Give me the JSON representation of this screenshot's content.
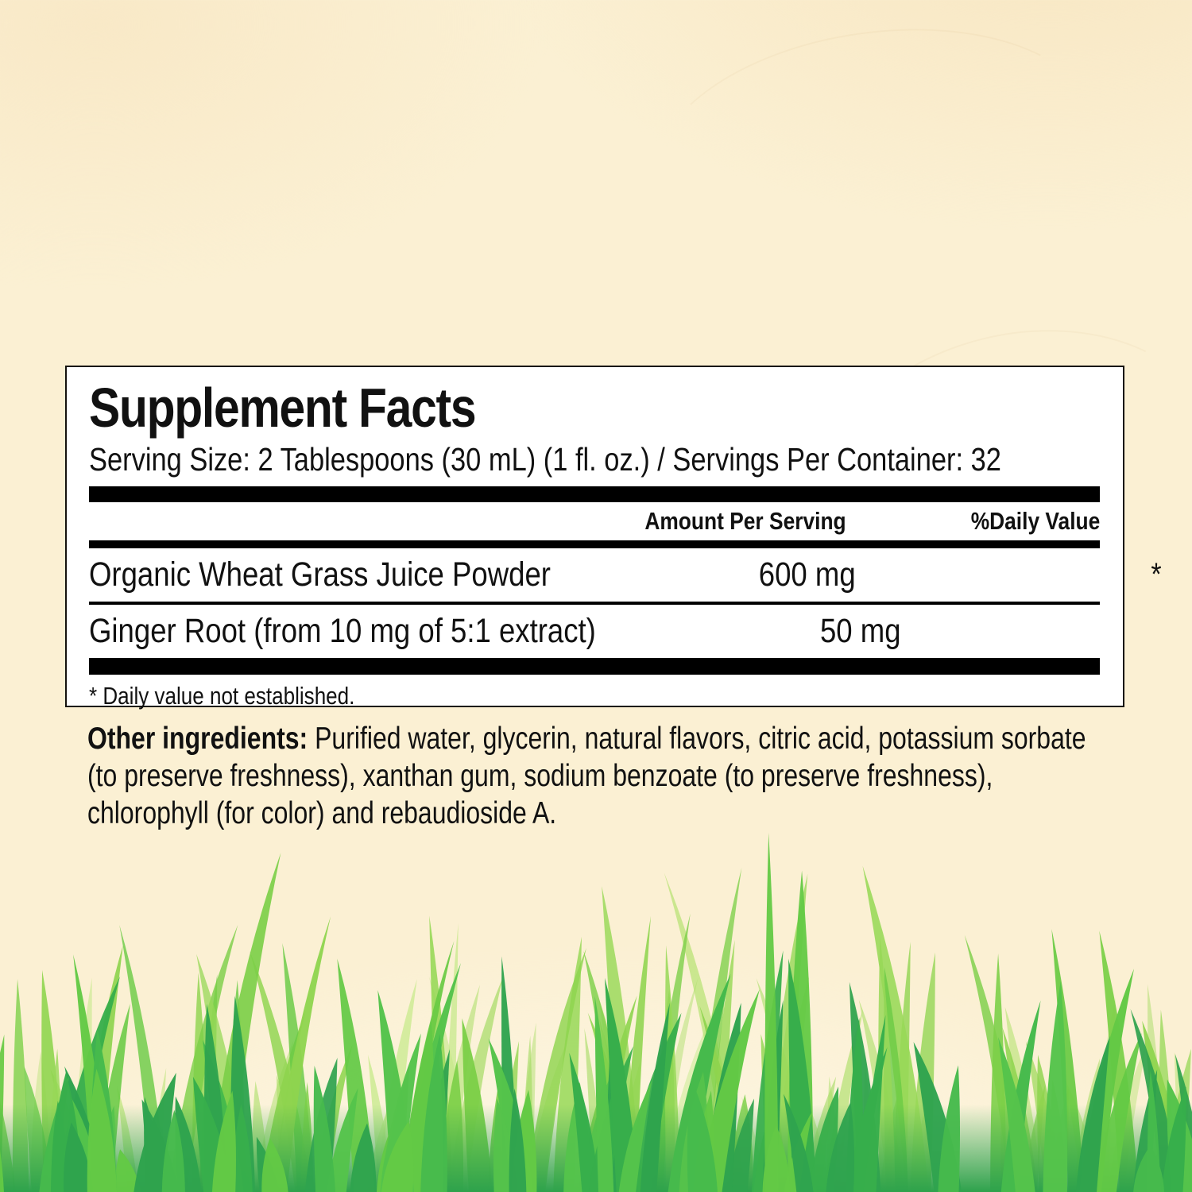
{
  "panel": {
    "title": "Supplement Facts",
    "serving_line": "Serving Size: 2 Tablespoons (30 mL) (1 fl. oz.) / Servings Per Container: 32",
    "columns": {
      "amount": "Amount Per Serving",
      "daily_value": "%Daily Value"
    },
    "rows": [
      {
        "name": "Organic Wheat Grass Juice Powder",
        "amount": "600 mg",
        "daily_value": "*"
      },
      {
        "name": "Ginger Root (from 10 mg of 5:1 extract)",
        "amount": "50 mg",
        "daily_value": "*"
      }
    ],
    "footnote": "* Daily value not established."
  },
  "other_ingredients": {
    "label": "Other ingredients:",
    "line1_rest": " Purified water, glycerin, natural flavors, citric acid, potassium sorbate",
    "line2": "(to preserve freshness), xanthan gum, sodium benzoate (to preserve freshness),",
    "line3": "chlorophyll (for color) and rebaudioside A."
  },
  "colors": {
    "background_cream": "#fbf0d3",
    "panel_background": "#ffffff",
    "panel_border": "#15120d",
    "bar_black": "#000000",
    "grass_dense_bottom": "#2ea24c"
  },
  "grass": {
    "palette_back": [
      "#c4e987",
      "#aade66",
      "#b9e377",
      "#9fd95c"
    ],
    "palette_mid": [
      "#8ed44e",
      "#7bcf47",
      "#69ca44",
      "#97d857"
    ],
    "palette_front": [
      "#55c34b",
      "#46ba4c",
      "#37ae4b",
      "#2fa34e",
      "#63c945"
    ]
  }
}
